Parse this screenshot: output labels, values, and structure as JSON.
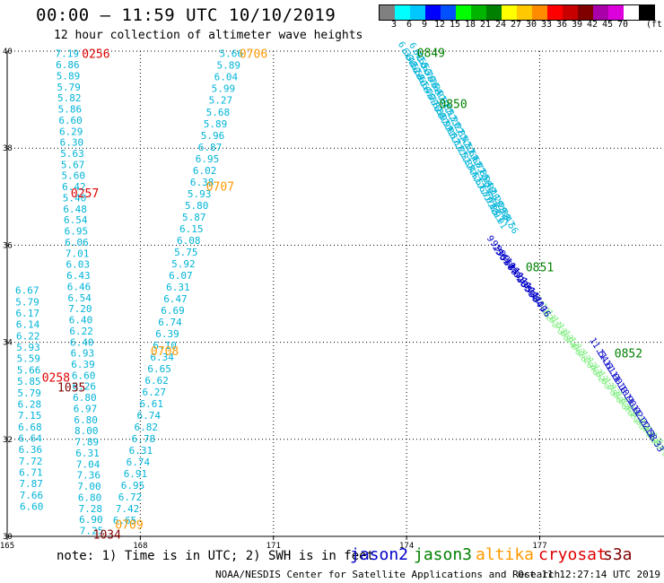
{
  "header": {
    "title": "00:00 – 11:59 UTC 10/10/2019",
    "subtitle": "12 hour collection of altimeter wave heights"
  },
  "colorbar": {
    "colors": [
      "#808080",
      "#00ffff",
      "#00c8ff",
      "#0000ff",
      "#0050ff",
      "#00ff00",
      "#00b400",
      "#008000",
      "#ffff00",
      "#ffc800",
      "#ff8c00",
      "#ff0000",
      "#c80000",
      "#800000",
      "#aa00aa",
      "#dc00dc",
      "#ffffff",
      "#000000"
    ],
    "labels": [
      "3",
      "6",
      "9",
      "12",
      "15",
      "18",
      "21",
      "24",
      "27",
      "30",
      "33",
      "36",
      "39",
      "42",
      "45",
      "70"
    ],
    "unit": "(ft)"
  },
  "axes": {
    "lon_min": 165,
    "lon_max": 179.8,
    "lat_min": 30,
    "lat_max": 40,
    "lon_ticks": [
      "165",
      "168",
      "171",
      "174",
      "177"
    ],
    "lat_ticks": [
      "40",
      "38",
      "36",
      "34",
      "32",
      "30"
    ]
  },
  "colors": {
    "jason2": "#0000c8",
    "jason3": "#008000",
    "altika": "#ff9900",
    "cryosat": "#e00000",
    "s3a": "#800000",
    "cyan": "#00b4d8",
    "lightgreen": "#80ee80",
    "grid": "#000000"
  },
  "track_cryosat": {
    "values": [
      "7.19",
      "6.86",
      "5.89",
      "5.79",
      "5.82",
      "5.86",
      "6.60",
      "6.29",
      "6.30",
      "5.63",
      "5.67",
      "5.60",
      "6.42",
      "5.40",
      "6.48",
      "6.54",
      "6.95",
      "6.06",
      "7.01",
      "6.03",
      "6.43",
      "6.46",
      "6.54",
      "7.20",
      "6.40",
      "6.22",
      "6.40",
      "6.93",
      "6.39",
      "6.60",
      "6.26",
      "6.80",
      "6.97",
      "6.80",
      "8.00",
      "7.89",
      "6.31",
      "7.04",
      "7.36",
      "7.00",
      "6.80",
      "7.28",
      "6.90",
      "7.25"
    ],
    "lon_start": 166.35,
    "lon_end": 166.9,
    "lat_start": 39.95,
    "lat_end": 30.12
  },
  "track_west": {
    "values": [
      "6.67",
      "5.79",
      "6.17",
      "6.14",
      "6.22",
      "5.93",
      "5.59",
      "5.66",
      "5.85",
      "5.79",
      "6.28",
      "7.15",
      "6.68",
      "6.64",
      "6.36",
      "7.72",
      "6.71",
      "7.87",
      "7.66",
      "6.60"
    ],
    "lon_start": 165.45,
    "lon_end": 165.55,
    "lat_start": 35.07,
    "lat_end": 30.62
  },
  "track_altika": {
    "values": [
      "5.66",
      "5.89",
      "6.04",
      "5.99",
      "5.27",
      "5.68",
      "5.89",
      "5.96",
      "6.87",
      "6.95",
      "6.02",
      "6.38",
      "5.93",
      "5.80",
      "5.87",
      "6.15",
      "6.08",
      "5.75",
      "5.92",
      "6.07",
      "6.31",
      "6.47",
      "6.69",
      "6.74",
      "6.39",
      "6.10",
      "6.34",
      "6.65",
      "6.62",
      "6.27",
      "6.61",
      "6.74",
      "6.82",
      "6.78",
      "6.31",
      "6.74",
      "6.91",
      "6.95",
      "6.72",
      "7.42",
      "6.65"
    ],
    "lon_start": 170.05,
    "lon_end": 167.65,
    "lat_start": 39.95,
    "lat_end": 30.33
  },
  "time_labels": [
    {
      "text": "0256",
      "group": "cryosat",
      "lon": 167.0,
      "lat": 39.95
    },
    {
      "text": "0257",
      "group": "cryosat",
      "lon": 166.75,
      "lat": 37.08
    },
    {
      "text": "0258",
      "group": "cryosat",
      "lon": 166.1,
      "lat": 33.28
    },
    {
      "text": "1035",
      "group": "s3a",
      "lon": 166.45,
      "lat": 33.08
    },
    {
      "text": "1034",
      "group": "s3a",
      "lon": 167.25,
      "lat": 30.05
    },
    {
      "text": "0706",
      "group": "altika",
      "lon": 170.55,
      "lat": 39.95
    },
    {
      "text": "0707",
      "group": "altika",
      "lon": 169.8,
      "lat": 37.22
    },
    {
      "text": "0708",
      "group": "altika",
      "lon": 168.55,
      "lat": 33.83
    },
    {
      "text": "0709",
      "group": "altika",
      "lon": 167.75,
      "lat": 30.25
    },
    {
      "text": "0849",
      "group": "jason3",
      "lon": 174.55,
      "lat": 39.97
    },
    {
      "text": "0850",
      "group": "jason3",
      "lon": 175.05,
      "lat": 38.92
    },
    {
      "text": "0851",
      "group": "jason3",
      "lon": 177.0,
      "lat": 35.55
    },
    {
      "text": "0852",
      "group": "jason3",
      "lon": 179.0,
      "lat": 33.78
    }
  ],
  "track_jason3_a": {
    "values": [
      "6.33",
      "6.48",
      "6.52",
      "6.58",
      "6.61",
      "6.64",
      "6.70",
      "6.77",
      "6.82",
      "6.88",
      "6.93",
      "6.99",
      "7.06",
      "7.12",
      "7.18",
      "7.25",
      "7.31",
      "7.38",
      "7.44",
      "7.51",
      "7.57",
      "7.63",
      "7.70",
      "7.78",
      "7.85",
      "7.93",
      "8.01"
    ],
    "lon_start": 174.0,
    "lon_end": 176.1,
    "lat_start": 40.0,
    "lat_end": 36.55
  },
  "track_jason3_b": {
    "values": [
      "6.41",
      "6.55",
      "6.63",
      "6.70",
      "6.76",
      "6.84",
      "6.91",
      "6.97",
      "7.05",
      "7.13",
      "7.20",
      "7.27",
      "7.35",
      "7.43",
      "7.52",
      "7.60",
      "7.68",
      "7.77",
      "7.85",
      "7.94",
      "8.02",
      "8.11",
      "8.20",
      "8.29",
      "8.38",
      "8.47",
      "8.56"
    ],
    "lon_start": 174.25,
    "lon_end": 176.35,
    "lat_start": 39.98,
    "lat_end": 36.45
  },
  "track_jason2": {
    "values": [
      "9.25",
      "9.36",
      "9.52",
      "9.68",
      "9.85",
      "10.02",
      "10.18",
      "10.35",
      "10.52",
      "10.68",
      "10.84",
      "11.00",
      "11.16"
    ],
    "lon_start": 176.0,
    "lon_end": 177.05,
    "lat_start": 36.0,
    "lat_end": 34.78
  },
  "track_jason2_b": {
    "values": [
      "11.54",
      "11.61",
      "11.00",
      "11.10",
      "10.90",
      "11.02",
      "11.22",
      "11.58",
      "11.33"
    ],
    "lon_start": 178.35,
    "lon_end": 179.6,
    "lat_start": 33.85,
    "lat_end": 32.0
  },
  "track_lightgreen": {
    "values": [
      "11.52",
      "11.61",
      "11.73",
      "11.85",
      "11.94",
      "12.06",
      "12.18",
      "12.29",
      "12.40",
      "12.52",
      "12.63",
      "12.75",
      "12.86",
      "12.98",
      "13.10",
      "13.21",
      "13.33",
      "13.44",
      "13.56",
      "13.67",
      "13.79",
      "13.90"
    ],
    "lon_start": 177.1,
    "lon_end": 179.85,
    "lat_start": 34.7,
    "lat_end": 31.75
  },
  "footer": {
    "note": "note: 1) Time is in UTC; 2) SWH is in feet",
    "legend": [
      {
        "name": "jason2",
        "color": "#0000c8"
      },
      {
        "name": "jason3",
        "color": "#008000"
      },
      {
        "name": "altika",
        "color": "#ff9900"
      },
      {
        "name": "cryosat",
        "color": "#e00000"
      },
      {
        "name": "s3a",
        "color": "#800000"
      }
    ],
    "credit": "NOAA/NESDIS Center for Satellite Applications and Research",
    "timestamp": "Oct 11 12:27:14 UTC 2019"
  }
}
